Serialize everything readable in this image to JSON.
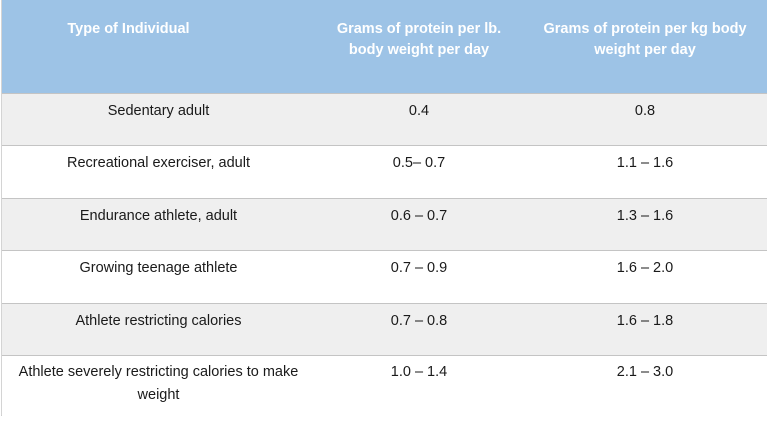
{
  "table": {
    "headers": [
      "Type of Individual",
      "Grams of protein per lb. body weight per day",
      "Grams of protein per kg body weight per day"
    ],
    "rows": [
      [
        "Sedentary adult",
        "0.4",
        "0.8"
      ],
      [
        "Recreational exerciser, adult",
        "0.5– 0.7",
        "1.1 – 1.6"
      ],
      [
        "Endurance athlete, adult",
        "0.6 – 0.7",
        "1.3 – 1.6"
      ],
      [
        "Growing teenage athlete",
        "0.7 – 0.9",
        "1.6 – 2.0"
      ],
      [
        "Athlete restricting calories",
        "0.7 – 0.8",
        "1.6 – 1.8"
      ],
      [
        "Athlete severely restricting calories to make weight",
        "1.0 – 1.4",
        "2.1 – 3.0"
      ]
    ],
    "header_color": "#9dc3e6",
    "shaded_row_color": "#efefef"
  }
}
